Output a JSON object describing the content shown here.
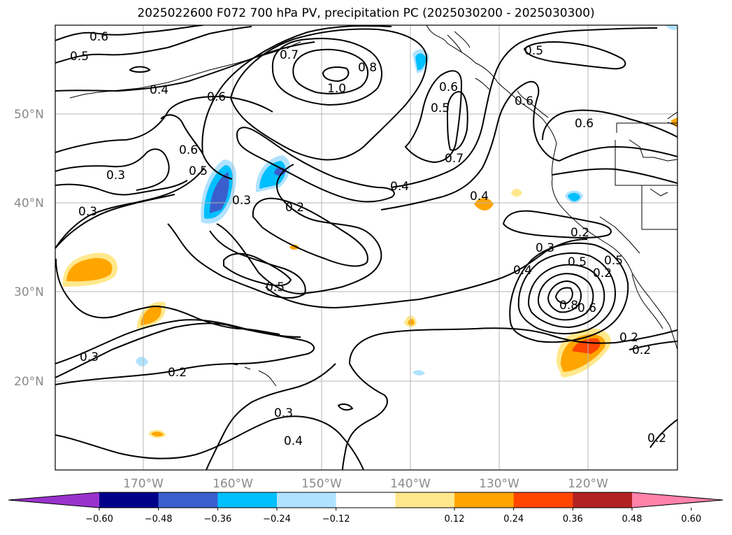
{
  "title": "2025022600 F072 700 hPa PV, precipitation PC (2025030200 - 2025030300)",
  "map": {
    "lat_labels": [
      "50°N",
      "40°N",
      "30°N",
      "20°N"
    ],
    "lon_labels": [
      "170°W",
      "160°W",
      "150°W",
      "140°W",
      "130°W",
      "120°W"
    ],
    "extent": {
      "lon_min": -180,
      "lon_max": -110,
      "lat_min": 10,
      "lat_max": 60
    },
    "grid": true
  },
  "pv_contour_labels": [
    "0.6",
    "0.5",
    "0.4",
    "0.6",
    "0.6",
    "0.5",
    "0.3",
    "0.3",
    "0.3",
    "0.3",
    "0.2",
    "0.2",
    "0.3",
    "0.4",
    "0.5",
    "0.7",
    "1.0",
    "0.8",
    "0.6",
    "0.5",
    "0.7",
    "0.4",
    "0.4",
    "0.5",
    "0.6",
    "0.3",
    "0.4",
    "0.5",
    "0.8",
    "0.6",
    "0.2",
    "0.2",
    "0.2",
    "0.6",
    "0.5",
    "0.2",
    "0.2"
  ],
  "colorbar": {
    "ticks": [
      "−0.60",
      "−0.48",
      "−0.36",
      "−0.24",
      "−0.12",
      "0.12",
      "0.24",
      "0.36",
      "0.48",
      "0.60"
    ],
    "colors": [
      "#9932cc",
      "#00008b",
      "#3a5fcd",
      "#00bfff",
      "#b0e2ff",
      "#ffffff",
      "#ffe88c",
      "#ffa500",
      "#ff4500",
      "#b22222",
      "#ff82ab"
    ]
  }
}
